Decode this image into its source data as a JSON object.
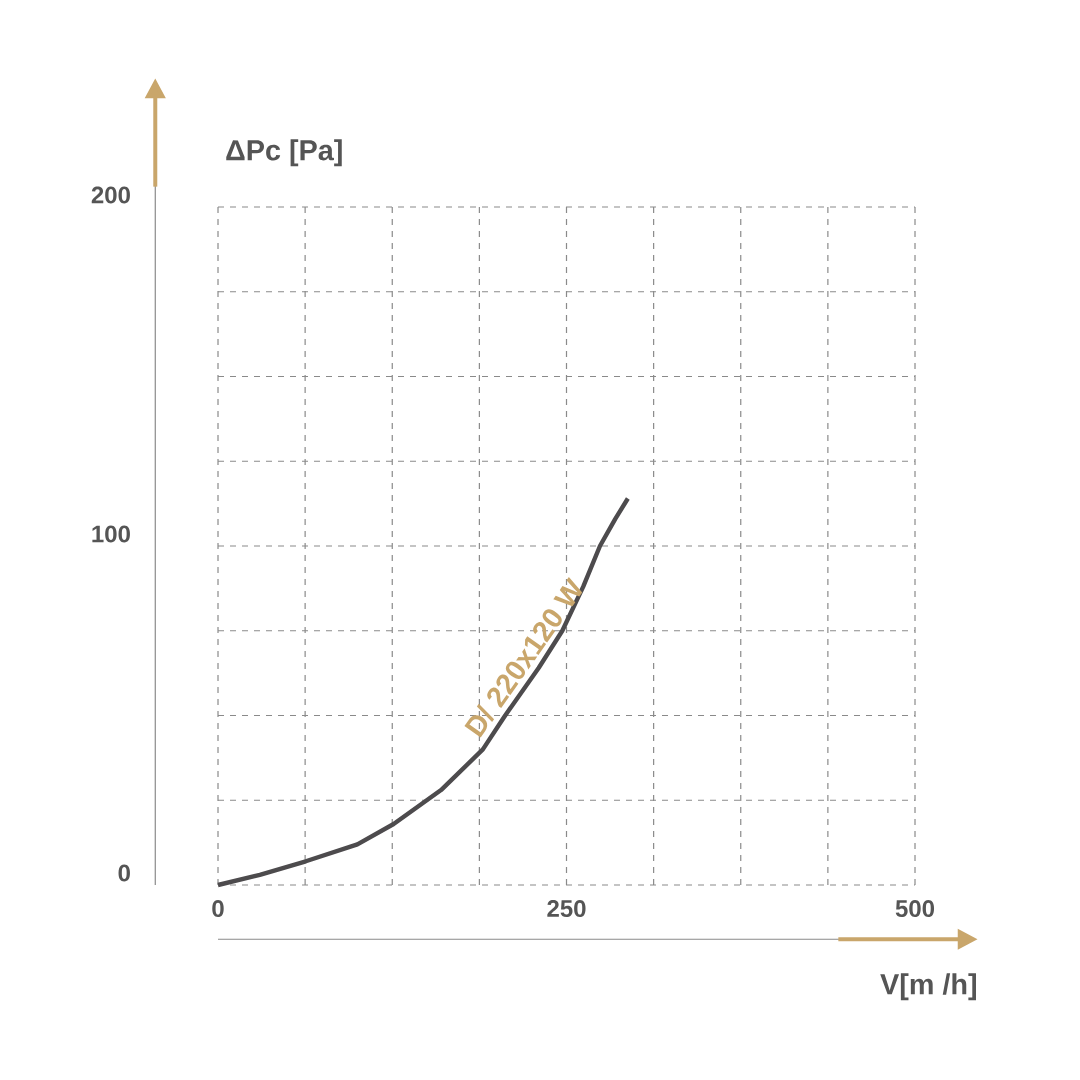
{
  "chart_data": {
    "type": "line",
    "xlabel": "V[m /h]",
    "ylabel": "ΔPc [Pa]",
    "xlim": [
      0,
      500
    ],
    "ylim": [
      0,
      200
    ],
    "xticks": [
      0,
      {
        "value": 62.5,
        "label": null
      },
      {
        "value": 125,
        "label": null
      },
      {
        "value": 187.5,
        "label": null
      },
      250,
      {
        "value": 312.5,
        "label": null
      },
      {
        "value": 375,
        "label": null
      },
      {
        "value": 437.5,
        "label": null
      },
      500
    ],
    "yticks": [
      0,
      {
        "value": 25,
        "label": null
      },
      {
        "value": 50,
        "label": null
      },
      {
        "value": 75,
        "label": null
      },
      100,
      {
        "value": 125,
        "label": null
      },
      {
        "value": 150,
        "label": null
      },
      {
        "value": 175,
        "label": null
      },
      200
    ],
    "grid": true,
    "series": [
      {
        "name": "D/ 220x120 W",
        "color": "#4d4b4d",
        "x": [
          0,
          30,
          63,
          100,
          126,
          160,
          190,
          206,
          230,
          247,
          262,
          274,
          285,
          294
        ],
        "values": [
          0,
          3,
          7,
          12,
          18,
          28,
          40,
          50,
          64,
          75,
          88,
          100,
          108,
          114
        ]
      }
    ]
  }
}
